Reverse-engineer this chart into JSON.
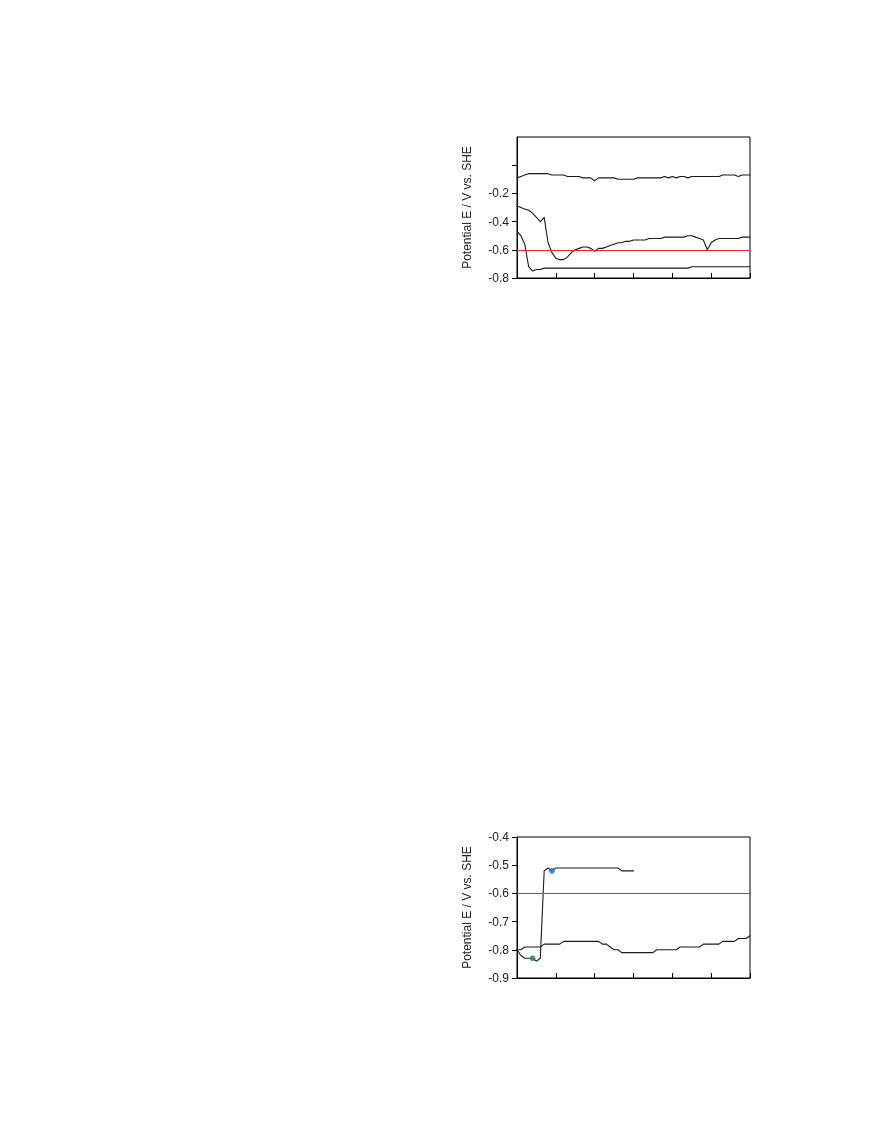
{
  "chart_data": [
    {
      "type": "line",
      "ylabel": "Potential E / V vs. SHE",
      "categories": [
        null,
        null,
        null,
        null,
        null,
        null,
        null,
        null,
        null,
        null,
        null,
        null,
        null,
        null,
        null,
        null,
        null,
        null,
        null,
        null,
        null,
        null,
        null,
        null,
        null,
        null,
        null,
        null,
        null,
        null,
        null,
        null,
        null,
        null,
        null,
        null,
        null,
        null,
        null,
        null,
        null,
        null,
        null,
        null,
        null,
        null,
        null,
        null,
        null,
        null,
        null,
        null,
        null,
        null,
        null,
        null,
        null,
        null,
        null,
        null,
        null
      ],
      "series": [
        {
          "color": "#1a1a1a",
          "values": [
            -0.09,
            -0.08,
            -0.07,
            -0.06,
            -0.06,
            -0.06,
            -0.06,
            -0.06,
            -0.06,
            -0.07,
            -0.07,
            -0.07,
            -0.07,
            -0.08,
            -0.08,
            -0.08,
            -0.08,
            -0.09,
            -0.09,
            -0.09,
            -0.11,
            -0.09,
            -0.09,
            -0.09,
            -0.09,
            -0.09,
            -0.1,
            -0.1,
            -0.1,
            -0.1,
            -0.1,
            -0.09,
            -0.09,
            -0.09,
            -0.09,
            -0.09,
            -0.09,
            -0.09,
            -0.08,
            -0.09,
            -0.08,
            -0.09,
            -0.08,
            -0.08,
            -0.09,
            -0.08,
            -0.08,
            -0.08,
            -0.08,
            -0.08,
            -0.08,
            -0.08,
            -0.08,
            -0.07,
            -0.07,
            -0.07,
            -0.07,
            -0.08,
            -0.07,
            -0.07,
            -0.07
          ]
        },
        {
          "color": "#1a1a1a",
          "values": [
            -0.29,
            -0.3,
            -0.31,
            -0.32,
            -0.34,
            -0.37,
            -0.4,
            -0.37,
            -0.55,
            -0.62,
            -0.66,
            -0.67,
            -0.67,
            -0.65,
            -0.62,
            -0.6,
            -0.59,
            -0.58,
            -0.58,
            -0.59,
            -0.61,
            -0.59,
            -0.59,
            -0.58,
            -0.57,
            -0.56,
            -0.55,
            -0.55,
            -0.54,
            -0.54,
            -0.53,
            -0.53,
            -0.53,
            -0.53,
            -0.52,
            -0.52,
            -0.52,
            -0.52,
            -0.51,
            -0.51,
            -0.51,
            -0.51,
            -0.51,
            -0.51,
            -0.5,
            -0.5,
            -0.51,
            -0.52,
            -0.53,
            -0.6,
            -0.55,
            -0.53,
            -0.52,
            -0.52,
            -0.52,
            -0.52,
            -0.52,
            -0.52,
            -0.51,
            -0.51,
            -0.51
          ]
        },
        {
          "color": "#1a1a1a",
          "values": [
            -0.47,
            -0.5,
            -0.56,
            -0.72,
            -0.75,
            -0.74,
            -0.74,
            -0.73,
            -0.73,
            -0.73,
            -0.73,
            -0.73,
            -0.73,
            -0.73,
            -0.73,
            -0.73,
            -0.73,
            -0.73,
            -0.73,
            -0.73,
            -0.73,
            -0.73,
            -0.73,
            -0.73,
            -0.73,
            -0.73,
            -0.73,
            -0.73,
            -0.73,
            -0.73,
            -0.73,
            -0.73,
            -0.73,
            -0.73,
            -0.73,
            -0.73,
            -0.73,
            -0.73,
            -0.73,
            -0.73,
            -0.73,
            -0.73,
            -0.73,
            -0.73,
            -0.73,
            -0.72,
            -0.72,
            -0.72,
            -0.72,
            -0.72,
            -0.72,
            -0.72,
            -0.72,
            -0.72,
            -0.72,
            -0.72,
            -0.72,
            -0.72,
            -0.72,
            -0.72,
            -0.72
          ]
        }
      ],
      "ylim": [
        -0.8,
        0.2
      ],
      "yticks": [
        -0.8,
        -0.6,
        -0.4,
        -0.2,
        {
          "value": 0,
          "label": null
        }
      ],
      "ref_lines": [
        {
          "axis": "y",
          "value": -0.6,
          "color": "#e8283c"
        }
      ],
      "tick_labels": "y",
      "grid": false,
      "line_style": "solid"
    },
    {
      "type": "line",
      "ylabel": "Potential E / V vs. SHE",
      "categories": [
        null,
        null,
        null,
        null,
        null,
        null,
        null,
        null,
        null,
        null,
        null,
        null,
        null,
        null,
        null,
        null,
        null,
        null,
        null,
        null,
        null,
        null,
        null,
        null,
        null,
        null,
        null,
        null,
        null,
        null,
        null,
        null,
        null,
        null,
        null,
        null,
        null,
        null,
        null,
        null,
        null,
        null,
        null,
        null,
        null,
        null,
        null,
        null,
        null,
        null,
        null,
        null,
        null,
        null,
        null,
        null,
        null,
        null,
        null,
        null,
        null
      ],
      "series": [
        {
          "color": "#1a1a1a",
          "values": [
            -0.8,
            -0.8,
            -0.79,
            -0.79,
            -0.79,
            -0.79,
            -0.79,
            -0.78,
            -0.78,
            -0.78,
            -0.78,
            -0.78,
            -0.77,
            -0.77,
            -0.77,
            -0.77,
            -0.77,
            -0.77,
            -0.77,
            -0.77,
            -0.77,
            -0.77,
            -0.78,
            -0.78,
            -0.79,
            -0.8,
            -0.8,
            -0.81,
            -0.81,
            -0.81,
            -0.81,
            -0.81,
            -0.81,
            -0.81,
            -0.81,
            -0.81,
            -0.8,
            -0.8,
            -0.8,
            -0.8,
            -0.8,
            -0.8,
            -0.79,
            -0.79,
            -0.79,
            -0.79,
            -0.79,
            -0.79,
            -0.78,
            -0.78,
            -0.78,
            -0.78,
            -0.78,
            -0.77,
            -0.77,
            -0.77,
            -0.77,
            -0.76,
            -0.76,
            -0.76,
            -0.75
          ]
        },
        {
          "color": "#1a1a1a",
          "values": [
            -0.8,
            -0.82,
            -0.83,
            -0.83,
            -0.83,
            -0.84,
            -0.83,
            -0.52,
            -0.51,
            -0.52,
            -0.51,
            -0.51,
            -0.51,
            -0.51,
            -0.51,
            -0.51,
            -0.51,
            -0.51,
            -0.51,
            -0.51,
            -0.51,
            -0.51,
            -0.51,
            -0.51,
            -0.51,
            -0.51,
            -0.51,
            -0.52,
            -0.52,
            -0.52,
            -0.52,
            null,
            null,
            null,
            null,
            null,
            null,
            null,
            null,
            null,
            null,
            null,
            null,
            null,
            null,
            null,
            null,
            null,
            null,
            null,
            null,
            null,
            null,
            null,
            null,
            null,
            null,
            null,
            null,
            null,
            null
          ]
        },
        {
          "type": "scatter",
          "color": "#2a8a4a",
          "values": [
            null,
            null,
            null,
            null,
            -0.83,
            null,
            null,
            null,
            null,
            null,
            null,
            null,
            null,
            null,
            null,
            null,
            null,
            null,
            null,
            null,
            null,
            null,
            null,
            null,
            null,
            null,
            null,
            null,
            null,
            null,
            null,
            null,
            null,
            null,
            null,
            null,
            null,
            null,
            null,
            null,
            null,
            null,
            null,
            null,
            null,
            null,
            null,
            null,
            null,
            null,
            null,
            null,
            null,
            null,
            null,
            null,
            null,
            null,
            null,
            null,
            null
          ]
        },
        {
          "type": "scatter",
          "color": "#1f77c8",
          "values": [
            null,
            null,
            null,
            null,
            null,
            null,
            null,
            null,
            null,
            -0.52,
            null,
            null,
            null,
            null,
            null,
            null,
            null,
            null,
            null,
            null,
            null,
            null,
            null,
            null,
            null,
            null,
            null,
            null,
            null,
            null,
            null,
            null,
            null,
            null,
            null,
            null,
            null,
            null,
            null,
            null,
            null,
            null,
            null,
            null,
            null,
            null,
            null,
            null,
            null,
            null,
            null,
            null,
            null,
            null,
            null,
            null,
            null,
            null,
            null,
            null,
            null
          ]
        }
      ],
      "ylim": [
        -0.9,
        -0.4
      ],
      "yticks": [
        -0.9,
        -0.8,
        -0.7,
        -0.6,
        -0.5,
        -0.4
      ],
      "ref_lines": [
        {
          "axis": "y",
          "value": -0.6,
          "color": "#e8283c"
        }
      ],
      "tick_labels": "y",
      "grid": false,
      "line_style": "solid"
    }
  ]
}
